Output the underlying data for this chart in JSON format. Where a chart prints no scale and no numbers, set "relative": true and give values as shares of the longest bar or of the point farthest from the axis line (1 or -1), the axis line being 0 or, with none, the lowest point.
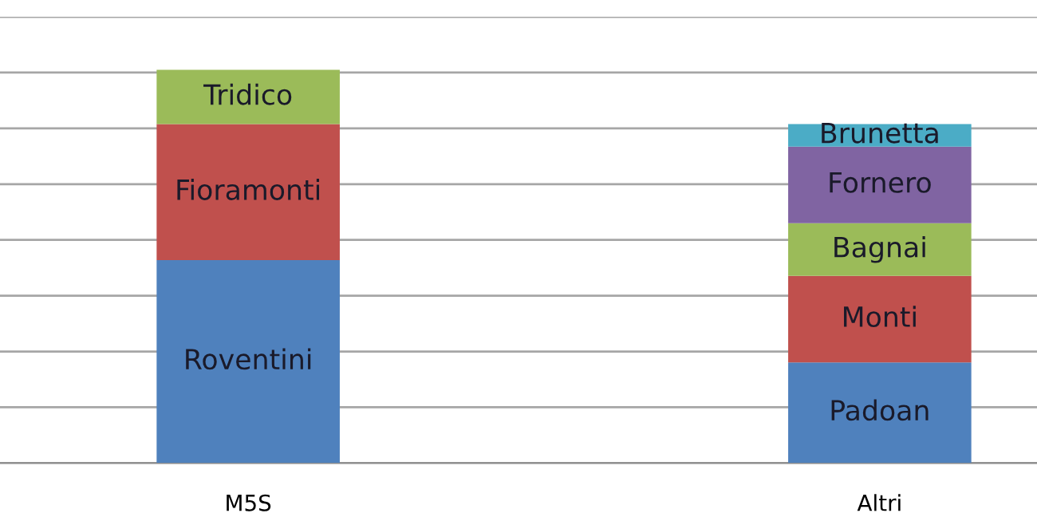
{
  "chart_data": {
    "type": "bar",
    "stacked": true,
    "relative": true,
    "grid": "y",
    "categories": [
      "M5S",
      "Altri"
    ],
    "series": [
      {
        "name": "Roventini",
        "color": "#4f81bd",
        "values": [
          0.516,
          null
        ]
      },
      {
        "name": "Fioramonti",
        "color": "#c0504d",
        "values": [
          0.346,
          null
        ]
      },
      {
        "name": "Tridico",
        "color": "#9bbb59",
        "values": [
          0.138,
          null
        ]
      },
      {
        "name": "Padoan",
        "color": "#4f81bd",
        "values": [
          null,
          0.256
        ]
      },
      {
        "name": "Monti",
        "color": "#c0504d",
        "values": [
          null,
          0.22
        ]
      },
      {
        "name": "Bagnai",
        "color": "#9bbb59",
        "values": [
          null,
          0.134
        ]
      },
      {
        "name": "Fornero",
        "color": "#8064a2",
        "values": [
          null,
          0.195
        ]
      },
      {
        "name": "Brunetta",
        "color": "#4bacc6",
        "values": [
          null,
          0.057
        ]
      }
    ]
  }
}
